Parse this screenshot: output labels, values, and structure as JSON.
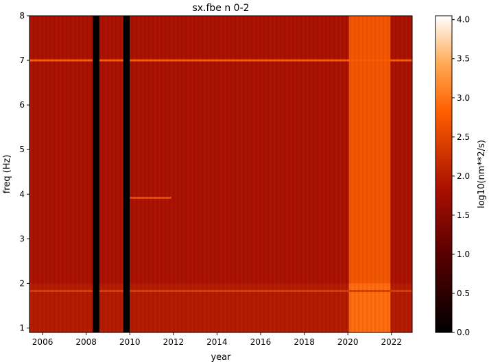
{
  "chart_data": {
    "type": "heatmap",
    "title": "sx.fbe n 0-2",
    "xlabel": "year",
    "ylabel": "freq (Hz)",
    "xlim": [
      2005.4,
      2022.95
    ],
    "ylim": [
      0.9,
      8.0
    ],
    "xticks": [
      2006,
      2008,
      2010,
      2012,
      2014,
      2016,
      2018,
      2020,
      2022
    ],
    "yticks": [
      1,
      2,
      3,
      4,
      5,
      6,
      7,
      8
    ],
    "colorbar": {
      "label": "log10(nm**2/s)",
      "range": [
        0.0,
        4.05
      ],
      "ticks": [
        "0.0",
        "0.5",
        "1.0",
        "1.5",
        "2.0",
        "2.5",
        "3.0",
        "3.5",
        "4.0"
      ],
      "colormap": "gist_heat"
    },
    "background_level": 1.85,
    "data_gaps": [
      {
        "from": 2008.3,
        "to": 2008.6
      },
      {
        "from": 2009.7,
        "to": 2010.0
      }
    ],
    "elevated_period": {
      "from": 2020.05,
      "to": 2021.95,
      "level": 2.7
    },
    "lines": [
      {
        "freq": 7.0,
        "from": 2005.4,
        "to": 2022.95,
        "level": 2.8
      },
      {
        "freq": 3.92,
        "from": 2010.0,
        "to": 2011.9,
        "level": 2.6
      },
      {
        "freq": 1.83,
        "from": 2005.4,
        "to": 2022.95,
        "level": 2.4
      }
    ],
    "grid": false,
    "legend": "none"
  }
}
